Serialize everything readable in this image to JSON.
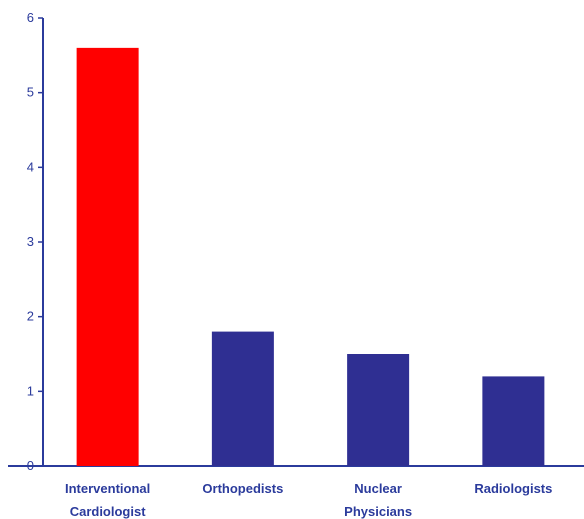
{
  "chart_data": {
    "type": "bar",
    "title": "",
    "xlabel": "",
    "ylabel": "",
    "ylim": [
      0,
      6
    ],
    "yticks": [
      0,
      1,
      2,
      3,
      4,
      5,
      6
    ],
    "grid": false,
    "categories": [
      [
        "Interventional",
        "Cardiologist"
      ],
      [
        "Orthopedists"
      ],
      [
        "Nuclear",
        "Physicians"
      ],
      [
        "Radiologists"
      ]
    ],
    "values": [
      5.6,
      1.8,
      1.5,
      1.2
    ],
    "colors": [
      "#ff0000",
      "#2f2f92",
      "#2f2f92",
      "#2f2f92"
    ],
    "axis_color": "#2b3b9c"
  }
}
